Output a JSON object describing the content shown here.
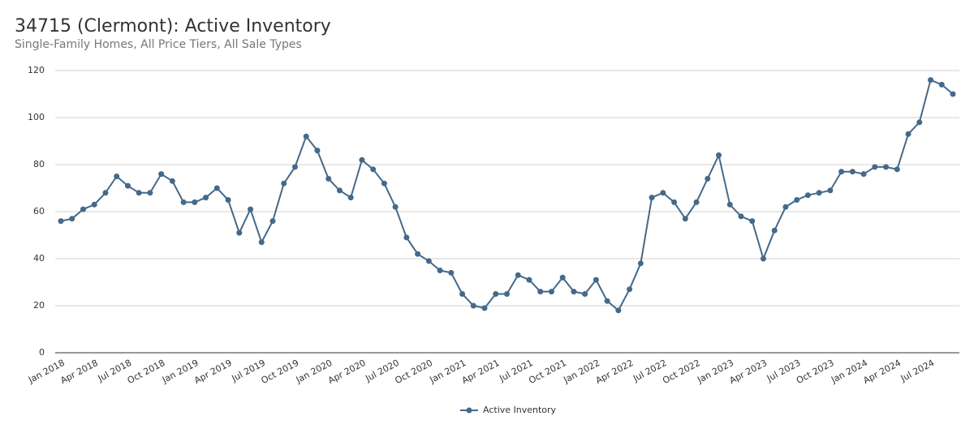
{
  "chart_data": {
    "type": "line",
    "title": "34715 (Clermont): Active Inventory",
    "subtitle": "Single-Family Homes, All Price Tiers, All Sale Types",
    "x": [
      "2018-01",
      "2018-02",
      "2018-03",
      "2018-04",
      "2018-05",
      "2018-06",
      "2018-07",
      "2018-08",
      "2018-09",
      "2018-10",
      "2018-11",
      "2018-12",
      "2019-01",
      "2019-02",
      "2019-03",
      "2019-04",
      "2019-05",
      "2019-06",
      "2019-07",
      "2019-08",
      "2019-09",
      "2019-10",
      "2019-11",
      "2019-12",
      "2020-01",
      "2020-02",
      "2020-03",
      "2020-04",
      "2020-05",
      "2020-06",
      "2020-07",
      "2020-08",
      "2020-09",
      "2020-10",
      "2020-11",
      "2020-12",
      "2021-01",
      "2021-02",
      "2021-03",
      "2021-04",
      "2021-05",
      "2021-06",
      "2021-07",
      "2021-08",
      "2021-09",
      "2021-10",
      "2021-11",
      "2021-12",
      "2022-01",
      "2022-02",
      "2022-03",
      "2022-04",
      "2022-05",
      "2022-06",
      "2022-07",
      "2022-08",
      "2022-09",
      "2022-10",
      "2022-11",
      "2022-12",
      "2023-01",
      "2023-02",
      "2023-03",
      "2023-04",
      "2023-05",
      "2023-06",
      "2023-07",
      "2023-08",
      "2023-09",
      "2023-10",
      "2023-11",
      "2023-12",
      "2024-01",
      "2024-02",
      "2024-03",
      "2024-04",
      "2024-05",
      "2024-06",
      "2024-07",
      "2024-08",
      "2024-09"
    ],
    "series": [
      {
        "name": "Active Inventory",
        "color": "#44698a",
        "values": [
          56,
          57,
          61,
          63,
          68,
          75,
          71,
          68,
          68,
          76,
          73,
          64,
          64,
          66,
          70,
          65,
          51,
          61,
          47,
          56,
          72,
          79,
          92,
          86,
          74,
          69,
          66,
          82,
          78,
          72,
          62,
          49,
          42,
          39,
          35,
          34,
          25,
          20,
          19,
          25,
          25,
          33,
          31,
          26,
          26,
          32,
          26,
          25,
          31,
          22,
          18,
          27,
          38,
          66,
          68,
          64,
          57,
          64,
          74,
          84,
          63,
          58,
          56,
          40,
          52,
          62,
          65,
          67,
          68,
          69,
          77,
          77,
          76,
          79,
          79,
          78,
          93,
          98,
          116,
          114,
          110
        ]
      }
    ],
    "xticks": [
      {
        "value": "2018-01",
        "label": "Jan 2018"
      },
      {
        "value": "2018-04",
        "label": "Apr 2018"
      },
      {
        "value": "2018-07",
        "label": "Jul 2018"
      },
      {
        "value": "2018-10",
        "label": "Oct 2018"
      },
      {
        "value": "2019-01",
        "label": "Jan 2019"
      },
      {
        "value": "2019-04",
        "label": "Apr 2019"
      },
      {
        "value": "2019-07",
        "label": "Jul 2019"
      },
      {
        "value": "2019-10",
        "label": "Oct 2019"
      },
      {
        "value": "2020-01",
        "label": "Jan 2020"
      },
      {
        "value": "2020-04",
        "label": "Apr 2020"
      },
      {
        "value": "2020-07",
        "label": "Jul 2020"
      },
      {
        "value": "2020-10",
        "label": "Oct 2020"
      },
      {
        "value": "2021-01",
        "label": "Jan 2021"
      },
      {
        "value": "2021-04",
        "label": "Apr 2021"
      },
      {
        "value": "2021-07",
        "label": "Jul 2021"
      },
      {
        "value": "2021-10",
        "label": "Oct 2021"
      },
      {
        "value": "2022-01",
        "label": "Jan 2022"
      },
      {
        "value": "2022-04",
        "label": "Apr 2022"
      },
      {
        "value": "2022-07",
        "label": "Jul 2022"
      },
      {
        "value": "2022-10",
        "label": "Oct 2022"
      },
      {
        "value": "2023-01",
        "label": "Jan 2023"
      },
      {
        "value": "2023-04",
        "label": "Apr 2023"
      },
      {
        "value": "2023-07",
        "label": "Jul 2023"
      },
      {
        "value": "2023-10",
        "label": "Oct 2023"
      },
      {
        "value": "2024-01",
        "label": "Jan 2024"
      },
      {
        "value": "2024-04",
        "label": "Apr 2024"
      },
      {
        "value": "2024-07",
        "label": "Jul 2024"
      }
    ],
    "ylim": [
      0,
      120
    ],
    "yticks": [
      0,
      20,
      40,
      60,
      80,
      100,
      120
    ],
    "grid": true,
    "legend": "bottom"
  }
}
